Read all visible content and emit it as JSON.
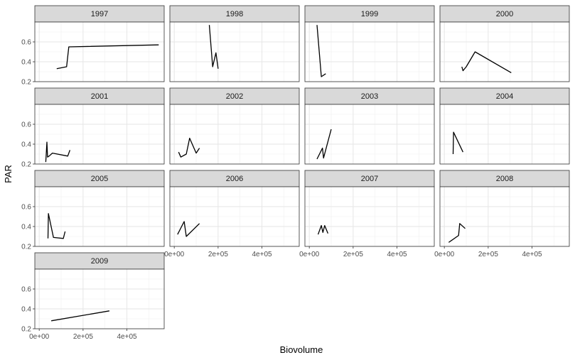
{
  "chart_data": {
    "type": "line",
    "chart_style": "faceted small multiples",
    "facet_by": "year",
    "xlabel": "Biovolume",
    "ylabel": "PAR",
    "xlim": [
      -20000,
      570000
    ],
    "ylim": [
      0.2,
      0.8
    ],
    "x_ticks": [
      0,
      200000,
      400000
    ],
    "x_tick_labels": [
      "0e+00",
      "2e+05",
      "4e+05"
    ],
    "y_ticks": [
      0.2,
      0.4,
      0.6
    ],
    "y_tick_labels": [
      "0.2",
      "0.4",
      "0.6"
    ],
    "grid": true,
    "line_color": "#000000",
    "panels": [
      {
        "label": "1997",
        "points": [
          [
            80000,
            0.33
          ],
          [
            125000,
            0.35
          ],
          [
            135000,
            0.55
          ],
          [
            545000,
            0.57
          ]
        ]
      },
      {
        "label": "1998",
        "points": [
          [
            160000,
            0.77
          ],
          [
            175000,
            0.35
          ],
          [
            190000,
            0.49
          ],
          [
            200000,
            0.33
          ]
        ]
      },
      {
        "label": "1999",
        "points": [
          [
            35000,
            0.77
          ],
          [
            55000,
            0.25
          ],
          [
            75000,
            0.28
          ]
        ]
      },
      {
        "label": "2000",
        "points": [
          [
            80000,
            0.35
          ],
          [
            85000,
            0.31
          ],
          [
            100000,
            0.35
          ],
          [
            140000,
            0.5
          ],
          [
            305000,
            0.29
          ]
        ]
      },
      {
        "label": "2001",
        "points": [
          [
            30000,
            0.22
          ],
          [
            35000,
            0.42
          ],
          [
            38000,
            0.27
          ],
          [
            45000,
            0.28
          ],
          [
            60000,
            0.31
          ],
          [
            130000,
            0.28
          ],
          [
            140000,
            0.34
          ]
        ]
      },
      {
        "label": "2002",
        "points": [
          [
            20000,
            0.32
          ],
          [
            30000,
            0.27
          ],
          [
            55000,
            0.3
          ],
          [
            70000,
            0.46
          ],
          [
            100000,
            0.31
          ],
          [
            115000,
            0.36
          ]
        ]
      },
      {
        "label": "2003",
        "points": [
          [
            35000,
            0.25
          ],
          [
            60000,
            0.36
          ],
          [
            65000,
            0.26
          ],
          [
            100000,
            0.55
          ]
        ]
      },
      {
        "label": "2004",
        "points": [
          [
            40000,
            0.3
          ],
          [
            42000,
            0.52
          ],
          [
            85000,
            0.32
          ]
        ]
      },
      {
        "label": "2005",
        "points": [
          [
            40000,
            0.28
          ],
          [
            42000,
            0.53
          ],
          [
            65000,
            0.29
          ],
          [
            110000,
            0.28
          ],
          [
            118000,
            0.35
          ]
        ]
      },
      {
        "label": "2006",
        "points": [
          [
            15000,
            0.32
          ],
          [
            45000,
            0.45
          ],
          [
            55000,
            0.3
          ],
          [
            115000,
            0.43
          ]
        ]
      },
      {
        "label": "2007",
        "points": [
          [
            40000,
            0.32
          ],
          [
            55000,
            0.41
          ],
          [
            62000,
            0.34
          ],
          [
            70000,
            0.41
          ],
          [
            85000,
            0.33
          ]
        ]
      },
      {
        "label": "2008",
        "points": [
          [
            20000,
            0.24
          ],
          [
            65000,
            0.31
          ],
          [
            70000,
            0.43
          ],
          [
            95000,
            0.38
          ]
        ]
      },
      {
        "label": "2009",
        "points": [
          [
            55000,
            0.28
          ],
          [
            320000,
            0.38
          ]
        ]
      }
    ]
  }
}
